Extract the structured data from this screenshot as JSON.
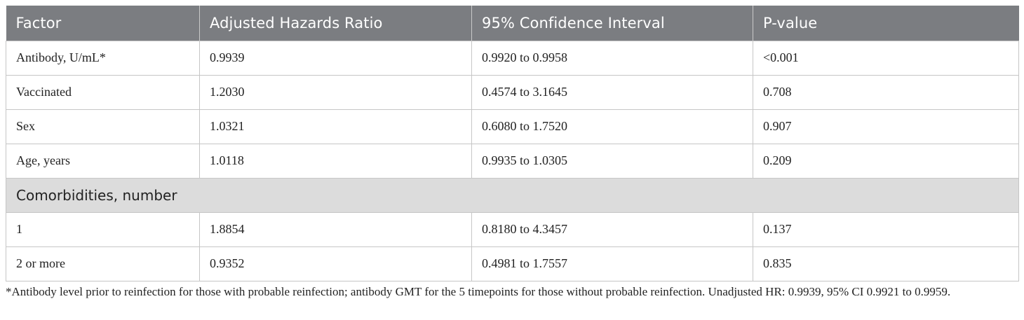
{
  "table": {
    "headers": [
      "Factor",
      "Adjusted Hazards Ratio",
      "95% Confidence Interval",
      "P-value"
    ],
    "rows_top": [
      [
        "Antibody, U/mL*",
        "0.9939",
        "0.9920 to 0.9958",
        "<0.001"
      ],
      [
        "Vaccinated",
        "1.2030",
        "0.4574 to 3.1645",
        "0.708"
      ],
      [
        "Sex",
        "1.0321",
        "0.6080 to 1.7520",
        "0.907"
      ],
      [
        "Age, years",
        "1.0118",
        "0.9935 to 1.0305",
        "0.209"
      ]
    ],
    "section_label": "Comorbidities, number",
    "rows_bottom": [
      [
        "1",
        "1.8854",
        "0.8180 to 4.3457",
        "0.137"
      ],
      [
        "2 or more",
        "0.9352",
        "0.4981 to 1.7557",
        "0.835"
      ]
    ]
  },
  "footnote": "*Antibody level prior to reinfection for those with probable reinfection; antibody GMT for the 5 timepoints for those without probable reinfection. Unadjusted HR: 0.9939, 95% CI 0.9921 to 0.9959."
}
